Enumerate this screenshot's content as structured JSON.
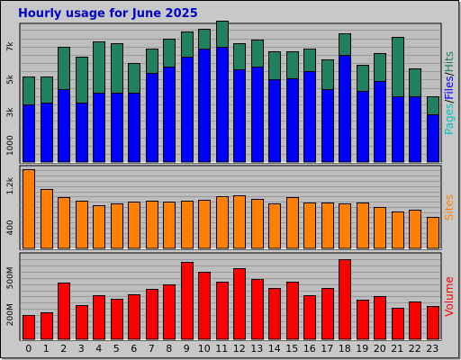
{
  "chart_data": {
    "type": "bar",
    "title": "Hourly usage for June 2025",
    "categories": [
      "0",
      "1",
      "2",
      "3",
      "4",
      "5",
      "6",
      "7",
      "8",
      "9",
      "10",
      "11",
      "12",
      "13",
      "14",
      "15",
      "16",
      "17",
      "18",
      "19",
      "20",
      "21",
      "22",
      "23"
    ],
    "panels": [
      {
        "name": "pages-files-hits",
        "ylim": [
          0,
          8300
        ],
        "yticks": [
          1000,
          3000,
          5000,
          7000
        ],
        "ytick_labels": [
          "1000",
          "3k",
          "5k",
          "7k"
        ],
        "legend": [
          {
            "text": "Pages",
            "color": "#00c0c0"
          },
          {
            "text": "/",
            "color": "#000000"
          },
          {
            "text": "Files",
            "color": "#0000ff"
          },
          {
            "text": "/",
            "color": "#000000"
          },
          {
            "text": "Hits",
            "color": "#208060"
          }
        ],
        "series": [
          {
            "name": "Hits",
            "color": "#208060",
            "values": [
              5200,
              5200,
              7000,
              6400,
              7300,
              7200,
              6000,
              6900,
              7500,
              7900,
              8100,
              8600,
              7200,
              7400,
              6700,
              6700,
              6900,
              6200,
              7800,
              5900,
              6600,
              7600,
              5700,
              4000
            ]
          },
          {
            "name": "Files",
            "color": "#0000ff",
            "values": [
              3500,
              3600,
              4400,
              3600,
              4200,
              4200,
              4200,
              5400,
              5800,
              6400,
              6900,
              7000,
              5600,
              5800,
              5000,
              5100,
              5500,
              4400,
              6500,
              4300,
              4900,
              4000,
              4000,
              2900
            ]
          }
        ]
      },
      {
        "name": "sites",
        "ylim": [
          0,
          1560
        ],
        "yticks": [
          400,
          1200
        ],
        "ytick_labels": [
          "400",
          "1.2k"
        ],
        "legend": [
          {
            "text": "Sites",
            "color": "#ff8000"
          }
        ],
        "series": [
          {
            "name": "Sites",
            "color": "#ff8000",
            "values": [
              1530,
              1140,
              980,
              920,
              840,
              860,
              900,
              920,
              910,
              920,
              930,
              1000,
              1020,
              950,
              870,
              980,
              880,
              880,
              860,
              880,
              800,
              710,
              750,
              600
            ]
          }
        ]
      },
      {
        "name": "volume",
        "ylim": [
          0,
          690
        ],
        "yticks": [
          200,
          500
        ],
        "ytick_labels": [
          "200M",
          "500M"
        ],
        "legend": [
          {
            "text": "Volume",
            "color": "#ff0000"
          }
        ],
        "series": [
          {
            "name": "Volume",
            "color": "#ff0000",
            "values": [
              200,
              220,
              460,
              280,
              360,
              330,
              370,
              410,
              450,
              630,
              550,
              470,
              580,
              490,
              420,
              470,
              360,
              420,
              650,
              320,
              350,
              260,
              310,
              270
            ]
          }
        ]
      }
    ]
  }
}
